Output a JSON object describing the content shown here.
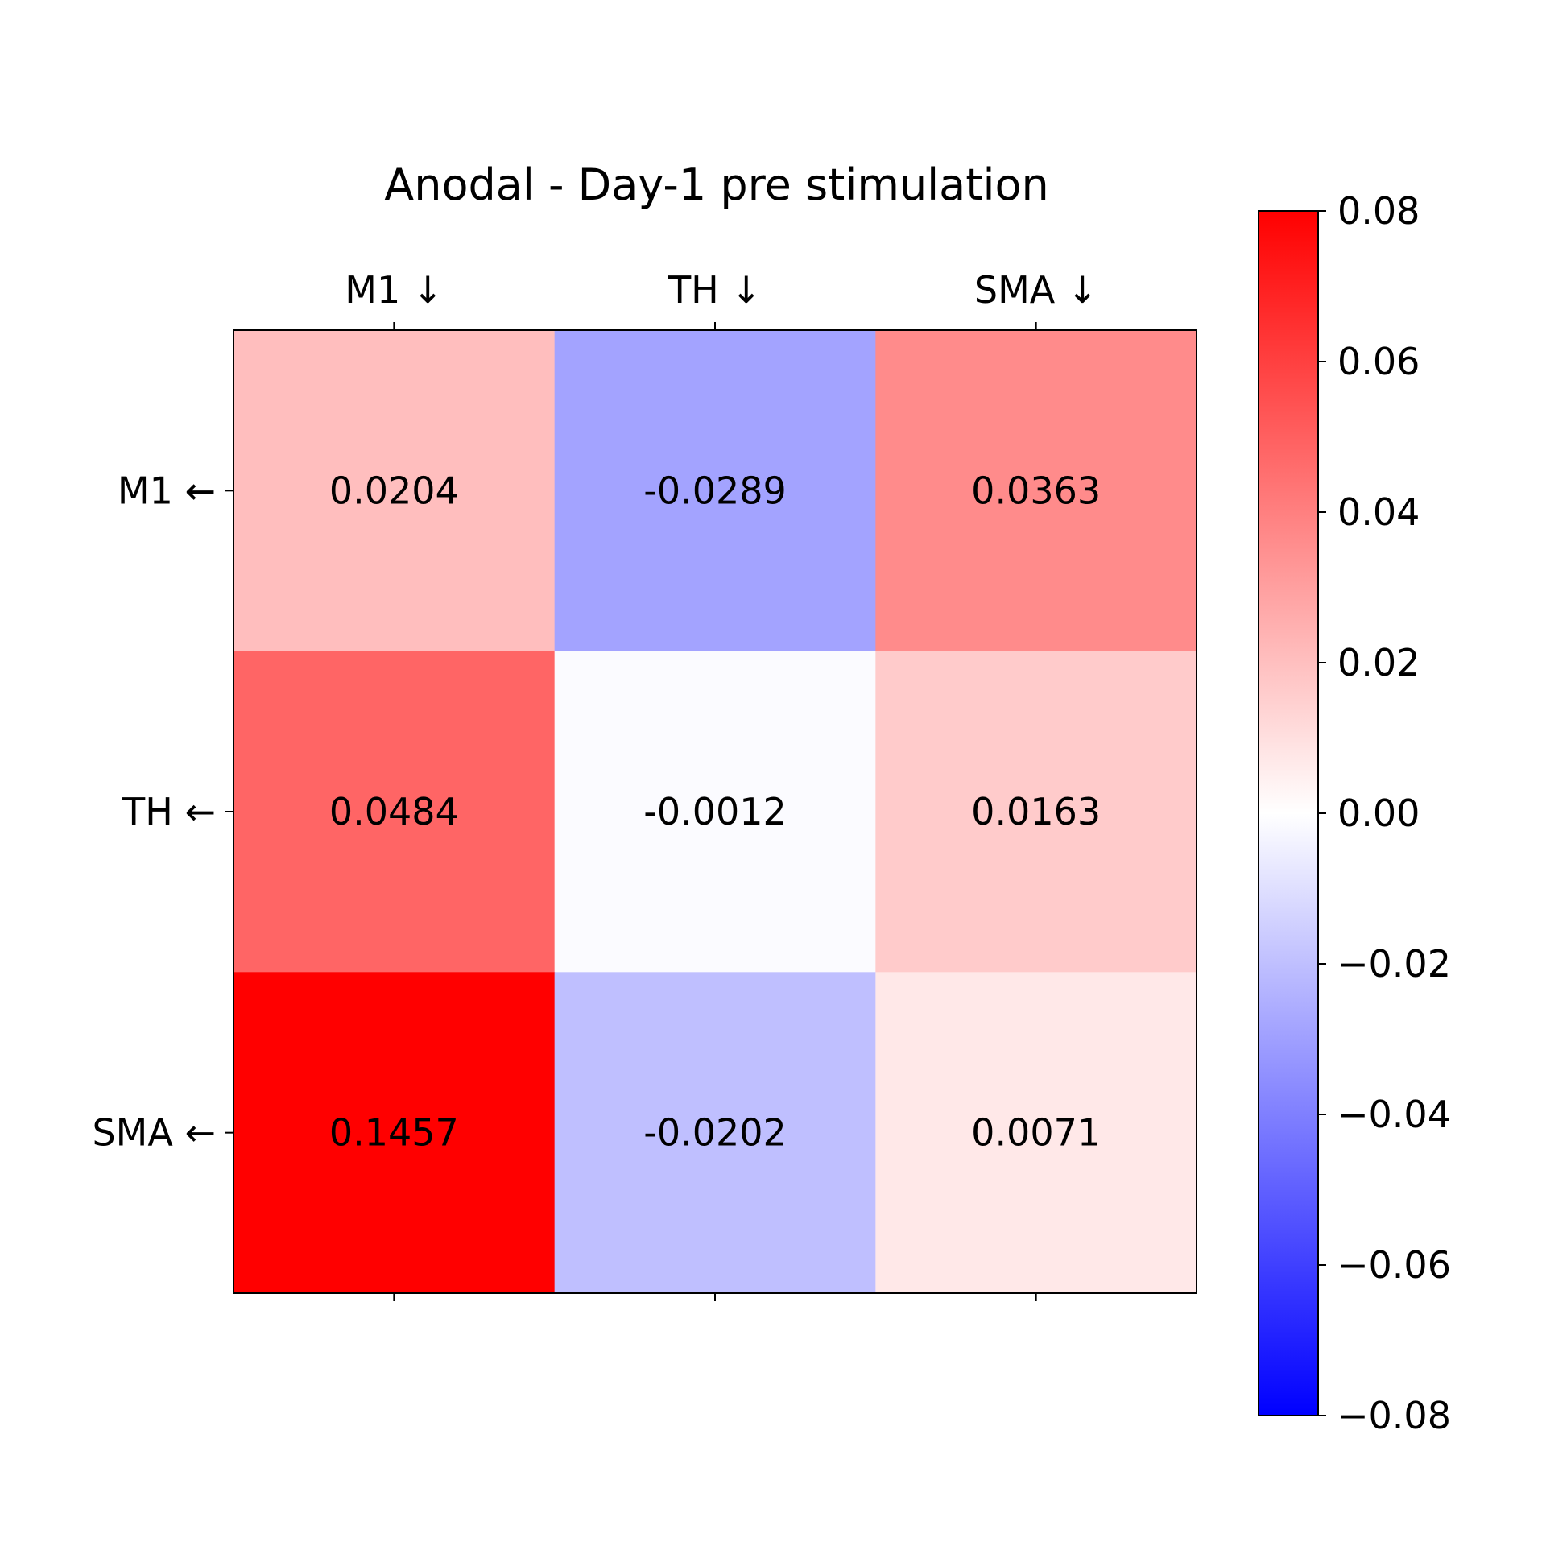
{
  "chart_data": {
    "type": "heatmap",
    "title": "Anodal - Day-1 pre stimulation",
    "x_categories": [
      "M1 ↓",
      "TH ↓",
      "SMA ↓"
    ],
    "y_categories": [
      "M1 ←",
      "TH ←",
      "SMA ←"
    ],
    "x_axis_position": "top",
    "values": [
      [
        0.0204,
        -0.0289,
        0.0363
      ],
      [
        0.0484,
        -0.0012,
        0.0163
      ],
      [
        0.1457,
        -0.0202,
        0.0071
      ]
    ],
    "value_labels": [
      [
        "0.0204",
        "-0.0289",
        "0.0363"
      ],
      [
        "0.0484",
        "-0.0012",
        "0.0163"
      ],
      [
        "0.1457",
        "-0.0202",
        "0.0071"
      ]
    ],
    "colorbar": {
      "colormap": "bwr",
      "vmin": -0.08,
      "vmax": 0.08,
      "low_color": "#0000ff",
      "mid_color": "#ffffff",
      "high_color": "#ff0000",
      "ticks": [
        0.08,
        0.06,
        0.04,
        0.02,
        0.0,
        -0.02,
        -0.04,
        -0.06,
        -0.08
      ],
      "tick_labels": [
        "0.08",
        "0.06",
        "0.04",
        "0.02",
        "0.00",
        "−0.02",
        "−0.04",
        "−0.06",
        "−0.08"
      ],
      "position": "right"
    },
    "grid": false,
    "legend": "none"
  }
}
